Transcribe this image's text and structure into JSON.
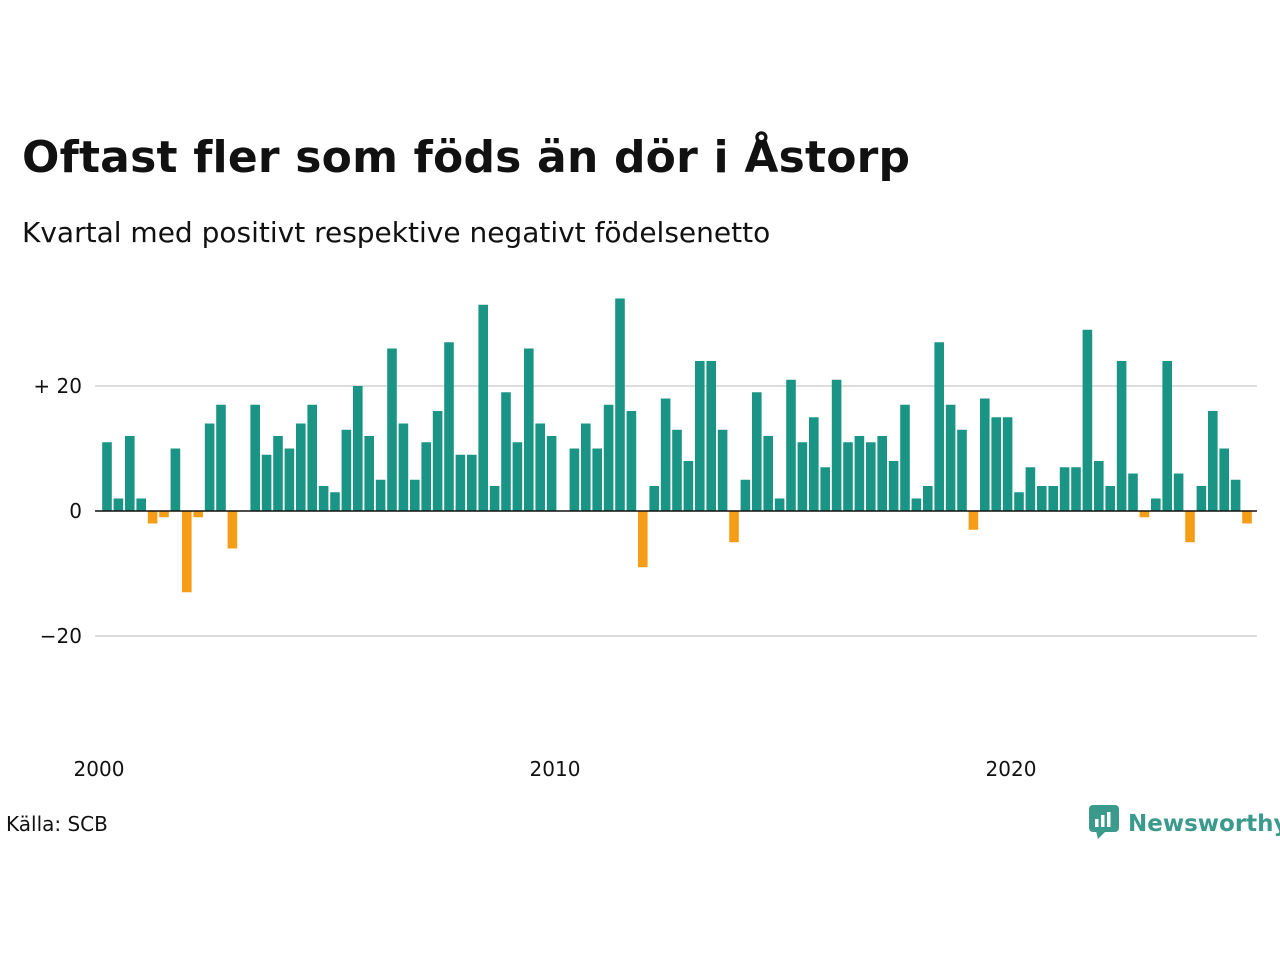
{
  "header": {
    "title": "Oftast fler som föds än dör i Åstorp",
    "subtitle": "Kvartal med positivt respektive negativt födelsenetto"
  },
  "footer": {
    "source": "Källa: SCB",
    "brand": "Newsworthy"
  },
  "colors": {
    "positive": "#1a9585",
    "negative": "#f59d17",
    "grid": "#dddddd",
    "zero_line": "#111111",
    "brand": "#3a9a8c"
  },
  "icons": {
    "brand_logo": "newsworthy-logo-icon"
  },
  "chart_data": {
    "type": "bar",
    "title": "Oftast fler som föds än dör i Åstorp",
    "subtitle": "Kvartal med positivt respektive negativt födelsenetto",
    "xlabel": "",
    "ylabel": "",
    "ylim": [
      -32,
      34
    ],
    "yticks": [
      {
        "value": 20,
        "label": "+ 20"
      },
      {
        "value": 0,
        "label": "0"
      },
      {
        "value": -20,
        "label": "−20"
      }
    ],
    "xticks": [
      {
        "value": 2000,
        "label": "2000"
      },
      {
        "value": 2010,
        "label": "2010"
      },
      {
        "value": 2020,
        "label": "2020"
      }
    ],
    "x_start": 2000,
    "x_step": 0.25,
    "grid": true,
    "values": [
      11,
      2,
      12,
      2,
      -2,
      -1,
      10,
      -13,
      -1,
      14,
      17,
      -6,
      0,
      17,
      9,
      12,
      10,
      14,
      17,
      4,
      3,
      13,
      20,
      12,
      5,
      26,
      14,
      5,
      11,
      16,
      27,
      9,
      9,
      33,
      4,
      19,
      11,
      26,
      14,
      12,
      0,
      10,
      14,
      10,
      17,
      34,
      16,
      -9,
      4,
      18,
      13,
      8,
      24,
      24,
      13,
      -5,
      5,
      19,
      12,
      2,
      21,
      11,
      15,
      7,
      21,
      11,
      12,
      11,
      12,
      8,
      17,
      2,
      4,
      27,
      17,
      13,
      -3,
      18,
      15,
      15,
      3,
      7,
      4,
      4,
      7,
      7,
      29,
      8,
      4,
      24,
      6,
      -1,
      2,
      24,
      6,
      -5,
      4,
      16,
      10,
      5,
      -2
    ]
  }
}
